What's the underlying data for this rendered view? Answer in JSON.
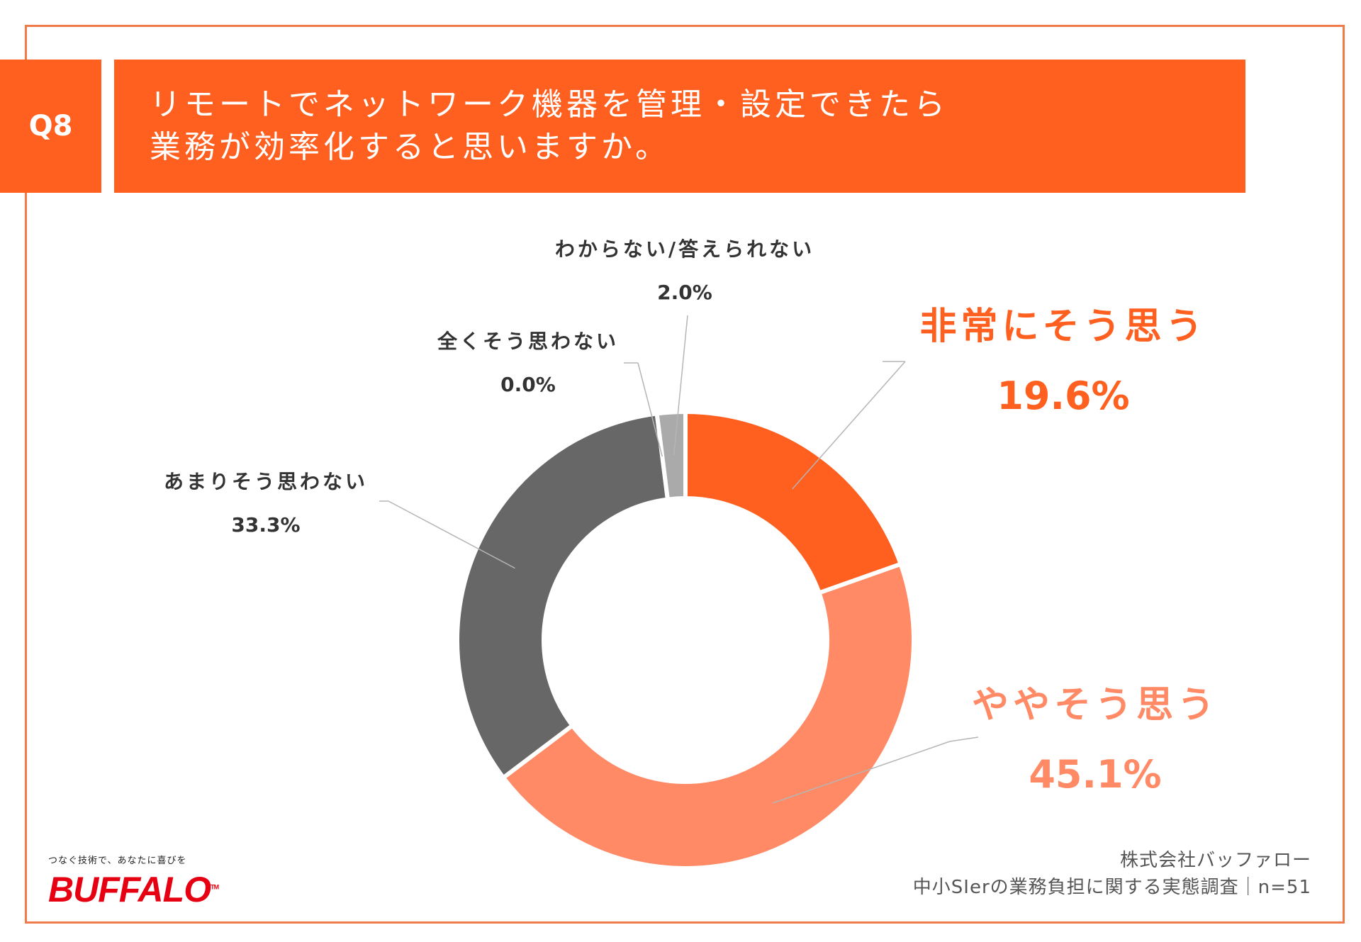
{
  "question": {
    "number": "Q8",
    "line1": "リモートでネットワーク機器を管理・設定できたら",
    "line2": "業務が効率化すると思いますか。"
  },
  "chart_data": {
    "type": "pie",
    "categories": [
      "非常にそう思う",
      "ややそう思う",
      "あまりそう思わない",
      "全くそう思わない",
      "わからない/答えられない"
    ],
    "values": [
      19.6,
      45.1,
      33.3,
      0.0,
      2.0
    ],
    "labels": [
      "19.6%",
      "45.1%",
      "33.3%",
      "0.0%",
      "2.0%"
    ],
    "colors": [
      "#ff5f1f",
      "#ff8a65",
      "#676767",
      "#cfcfcf",
      "#aaaaaa"
    ],
    "label_colors": [
      "#ff5f1f",
      "#ff8a65",
      "#333333",
      "#333333",
      "#333333"
    ]
  },
  "logo": {
    "tagline": "つなぐ技術で、あなたに喜びを",
    "brand": "BUFFALO",
    "tm": "TM"
  },
  "source": {
    "company": "株式会社バッファロー",
    "survey": "中小SIerの業務負担に関する実態調査｜n=51"
  }
}
